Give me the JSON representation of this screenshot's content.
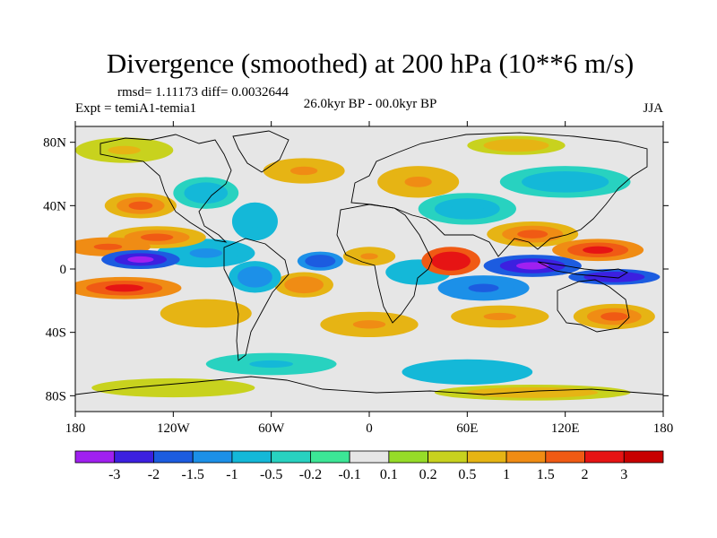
{
  "chart_data": {
    "type": "heatmap",
    "title": "Divergence (smoothed) at 200 hPa (10**6 m/s)",
    "stats": "rmsd= 1.11173 diff= 0.0032644",
    "experiment": "Expt = temiA1-temia1",
    "period": "26.0kyr BP - 00.0kyr BP",
    "season": "JJA",
    "xlim": [
      -180,
      180
    ],
    "ylim": [
      -90,
      90
    ],
    "x_ticks": [
      {
        "value": -180,
        "label": "180"
      },
      {
        "value": -120,
        "label": "120W"
      },
      {
        "value": -60,
        "label": "60W"
      },
      {
        "value": 0,
        "label": "0"
      },
      {
        "value": 60,
        "label": "60E"
      },
      {
        "value": 120,
        "label": "120E"
      },
      {
        "value": 180,
        "label": "180"
      }
    ],
    "y_ticks": [
      {
        "value": 80,
        "label": "80N"
      },
      {
        "value": 40,
        "label": "40N"
      },
      {
        "value": 0,
        "label": "0"
      },
      {
        "value": -40,
        "label": "40S"
      },
      {
        "value": -80,
        "label": "80S"
      }
    ],
    "levels": [
      -3,
      -2,
      -1.5,
      -1,
      -0.5,
      -0.2,
      -0.1,
      0.1,
      0.2,
      0.5,
      1,
      1.5,
      2,
      3
    ],
    "level_labels": [
      "-3",
      "-2",
      "-1.5",
      "-1",
      "-0.5",
      "-0.2",
      "-0.1",
      "0.1",
      "0.2",
      "0.5",
      "1",
      "1.5",
      "2",
      "3"
    ],
    "colors": [
      "#a020f0",
      "#3c20e0",
      "#1c5ce0",
      "#1c90e8",
      "#14b8d8",
      "#28d2c0",
      "#3ce696",
      "#e6e6e6",
      "#96dc28",
      "#c8d21e",
      "#e6b414",
      "#f08c14",
      "#f05a14",
      "#e61414",
      "#c80000"
    ],
    "anomalies": [
      {
        "lon": -140,
        "lat": 6,
        "value": -3.2,
        "rlon": 24,
        "rlat": 6
      },
      {
        "lon": -100,
        "lat": 10,
        "value": -1.2,
        "rlon": 30,
        "rlat": 9
      },
      {
        "lon": -160,
        "lat": 14,
        "value": 1.8,
        "rlon": 26,
        "rlat": 6
      },
      {
        "lon": -130,
        "lat": 20,
        "value": 1.5,
        "rlon": 30,
        "rlat": 7
      },
      {
        "lon": -150,
        "lat": -12,
        "value": 2.2,
        "rlon": 35,
        "rlat": 7
      },
      {
        "lon": -100,
        "lat": -28,
        "value": 0.9,
        "rlon": 28,
        "rlat": 9
      },
      {
        "lon": -140,
        "lat": 40,
        "value": 1.5,
        "rlon": 22,
        "rlat": 8
      },
      {
        "lon": -100,
        "lat": 48,
        "value": -0.8,
        "rlon": 20,
        "rlat": 10
      },
      {
        "lon": -70,
        "lat": 30,
        "value": -0.9,
        "rlon": 14,
        "rlat": 12
      },
      {
        "lon": -70,
        "lat": -5,
        "value": -1.5,
        "rlon": 16,
        "rlat": 10
      },
      {
        "lon": -40,
        "lat": -10,
        "value": 1.4,
        "rlon": 18,
        "rlat": 8
      },
      {
        "lon": -30,
        "lat": 5,
        "value": -2.0,
        "rlon": 14,
        "rlat": 6
      },
      {
        "lon": 0,
        "lat": 8,
        "value": 1.2,
        "rlon": 16,
        "rlat": 6
      },
      {
        "lon": 30,
        "lat": -2,
        "value": -1.0,
        "rlon": 20,
        "rlat": 8
      },
      {
        "lon": 50,
        "lat": 5,
        "value": 2.8,
        "rlon": 18,
        "rlat": 9
      },
      {
        "lon": 70,
        "lat": -12,
        "value": -1.8,
        "rlon": 28,
        "rlat": 8
      },
      {
        "lon": 100,
        "lat": 2,
        "value": -3.1,
        "rlon": 30,
        "rlat": 7
      },
      {
        "lon": 150,
        "lat": -5,
        "value": -3.0,
        "rlon": 28,
        "rlat": 5
      },
      {
        "lon": 140,
        "lat": 12,
        "value": 2.2,
        "rlon": 28,
        "rlat": 7
      },
      {
        "lon": 100,
        "lat": 22,
        "value": 1.5,
        "rlon": 28,
        "rlat": 8
      },
      {
        "lon": 60,
        "lat": 38,
        "value": -0.8,
        "rlon": 30,
        "rlat": 10
      },
      {
        "lon": 30,
        "lat": 55,
        "value": 1.0,
        "rlon": 25,
        "rlat": 10
      },
      {
        "lon": 120,
        "lat": 55,
        "value": -0.8,
        "rlon": 40,
        "rlat": 10
      },
      {
        "lon": -40,
        "lat": 62,
        "value": 1.0,
        "rlon": 25,
        "rlat": 8
      },
      {
        "lon": 0,
        "lat": -35,
        "value": 1.1,
        "rlon": 30,
        "rlat": 8
      },
      {
        "lon": 80,
        "lat": -30,
        "value": 1.2,
        "rlon": 30,
        "rlat": 7
      },
      {
        "lon": 150,
        "lat": -30,
        "value": 1.5,
        "rlon": 25,
        "rlat": 8
      },
      {
        "lon": -60,
        "lat": -60,
        "value": -0.6,
        "rlon": 40,
        "rlat": 7
      },
      {
        "lon": 60,
        "lat": -65,
        "value": -0.9,
        "rlon": 40,
        "rlat": 8
      },
      {
        "lon": -120,
        "lat": -75,
        "value": 0.4,
        "rlon": 50,
        "rlat": 6
      },
      {
        "lon": 100,
        "lat": -78,
        "value": 0.8,
        "rlon": 60,
        "rlat": 5
      },
      {
        "lon": -150,
        "lat": 75,
        "value": 0.6,
        "rlon": 30,
        "rlat": 8
      },
      {
        "lon": 90,
        "lat": 78,
        "value": 0.7,
        "rlon": 30,
        "rlat": 6
      }
    ]
  }
}
